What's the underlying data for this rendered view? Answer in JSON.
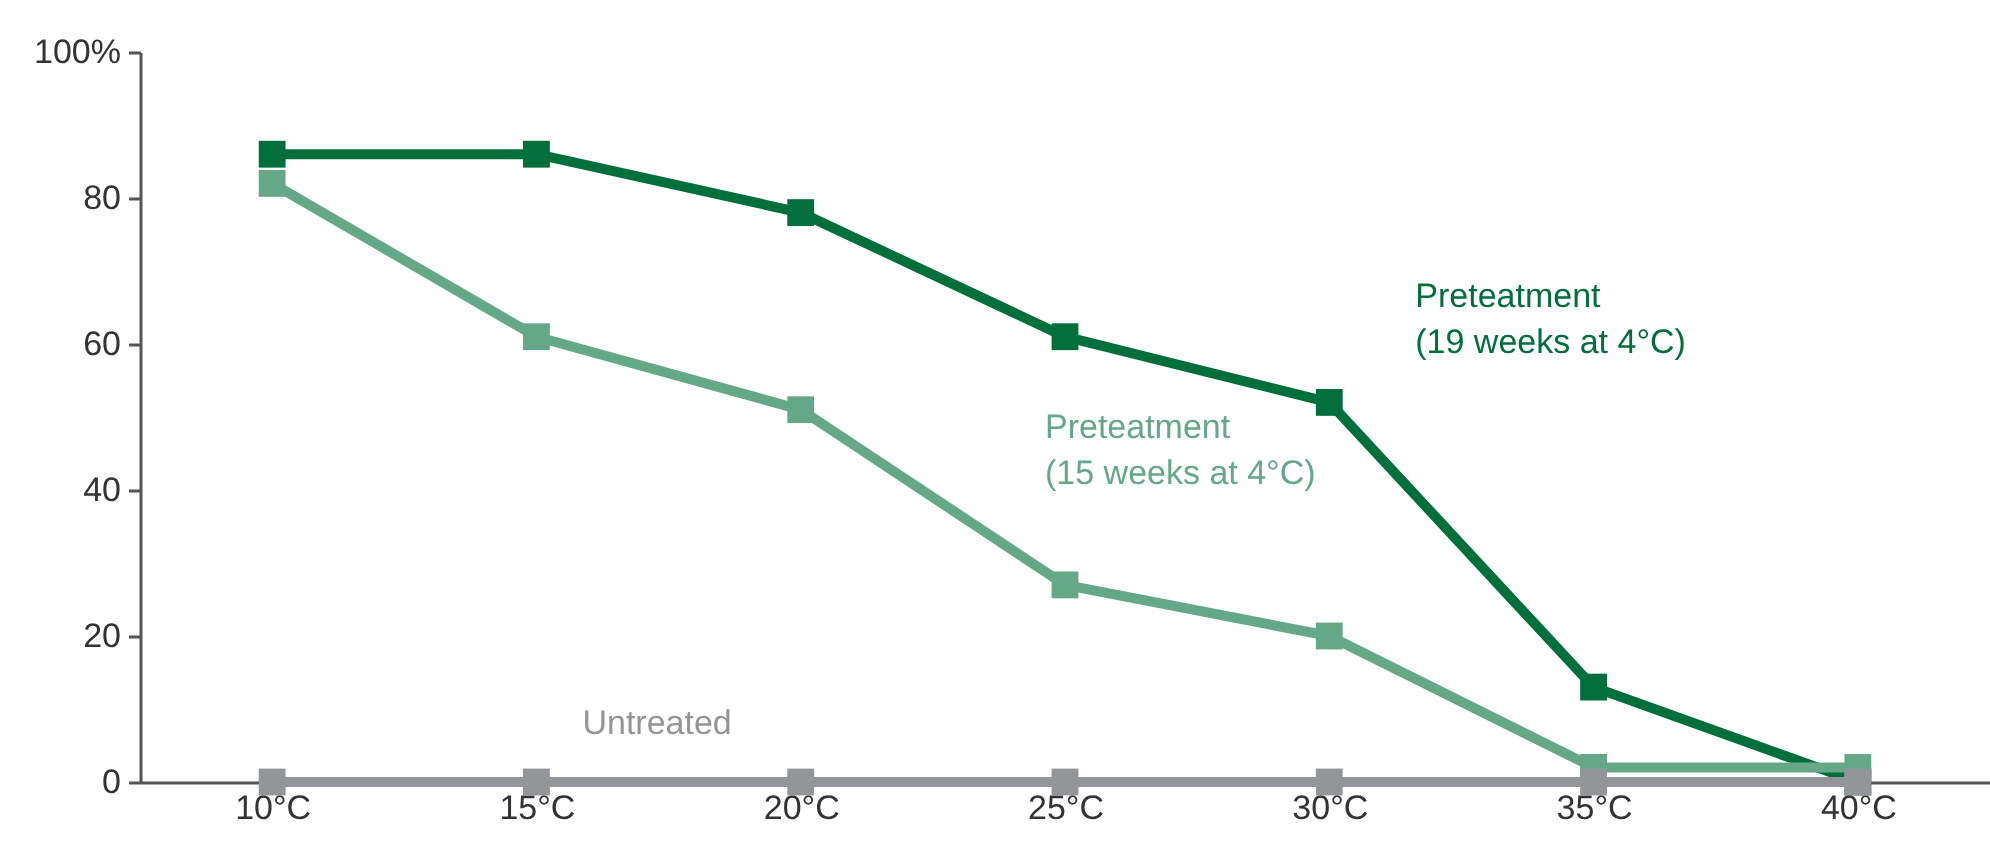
{
  "chart_data": {
    "type": "line",
    "categories": [
      "10°C",
      "15°C",
      "20°C",
      "25°C",
      "30°C",
      "35°C",
      "40°C"
    ],
    "series": [
      {
        "name": "Preteatment\n(19 weeks at 4°C)",
        "color": "#006f3c",
        "values": [
          86,
          86,
          78,
          61,
          52,
          13,
          0
        ]
      },
      {
        "name": "Preteatment\n(15 weeks at 4°C)",
        "color": "#65a888",
        "values": [
          82,
          61,
          51,
          27,
          20,
          2,
          2
        ]
      },
      {
        "name": "Untreated",
        "color": "#939598",
        "values": [
          0,
          0,
          0,
          0,
          0,
          0,
          0
        ]
      }
    ],
    "ylim": [
      0,
      100
    ],
    "yticks": [
      0,
      20,
      40,
      60,
      80,
      {
        "value": 100,
        "label": "100%"
      }
    ],
    "grid": false,
    "marker": "square",
    "line_style": "solid"
  }
}
